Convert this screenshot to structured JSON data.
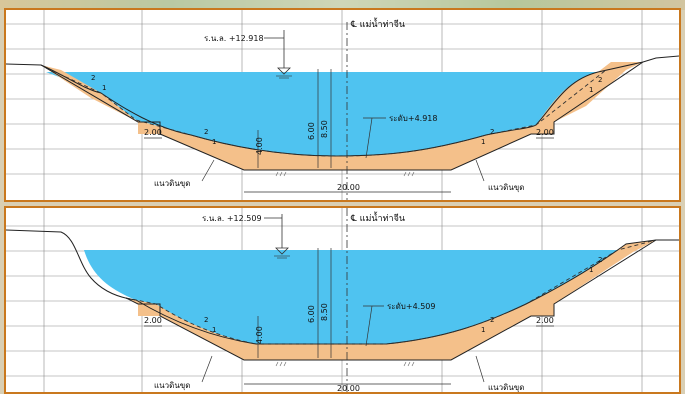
{
  "sections": [
    {
      "water_level_label": "ร.น.ล. +12.918",
      "centerline_label": "℄ แม่น้ำท่าจีน",
      "bed_level_label": "ระดับ+4.918",
      "depth_left": "6.00",
      "depth_right": "8.50",
      "depth_small": "4.00",
      "bottom_width": "20.00",
      "berm_left": "2.00",
      "berm_right": "2.00",
      "slope_rise": "1",
      "slope_run": "2",
      "earth_line_label_left": "แนวดินขุด",
      "earth_line_label_right": "แนวดินขุด"
    },
    {
      "water_level_label": "ร.น.ล. +12.509",
      "centerline_label": "℄ แม่น้ำท่าจีน",
      "bed_level_label": "ระดับ+4.509",
      "depth_left": "6.00",
      "depth_right": "8.50",
      "depth_small": "4.00",
      "bottom_width": "20.00",
      "berm_left": "2.00",
      "berm_right": "2.00",
      "slope_rise": "1",
      "slope_run": "2",
      "earth_line_label_left": "แนวดินขุด",
      "earth_line_label_right": "แนวดินขุด"
    }
  ],
  "colors": {
    "water": "#4fc3f0",
    "excavation_fill": "#f4c08a",
    "frame": "#c9781e",
    "grid": "#8a8a8a"
  }
}
